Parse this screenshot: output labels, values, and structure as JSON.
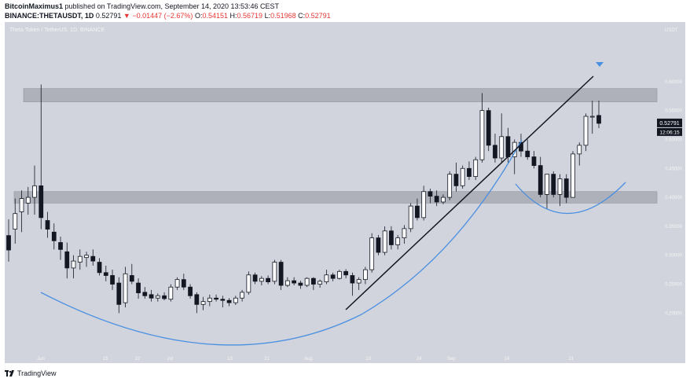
{
  "header": {
    "author": "BitcoinMaximus1",
    "published": "published on TradingView.com, September 14, 2020 13:53:46 CEST",
    "symbol": "BINANCE:THETAUSDT, 1D",
    "price": "0.52791",
    "change": "−0.01447 (−2.67%)",
    "o_label": "O:",
    "o_value": "0.54151",
    "h_label": "H:",
    "h_value": "0.56719",
    "l_label": "L:",
    "l_value": "0.51968",
    "c_label": "C:",
    "c_value": "0.52791"
  },
  "footer": {
    "brand": "TradingView"
  },
  "colors": {
    "background": "#d1d4dc",
    "zone": "#a9abb3",
    "candle_up_fill": "#ffffff",
    "candle_down_fill": "#131722",
    "candle_outline": "#131722",
    "trendline": "#131722",
    "curve": "#4a90e2",
    "price_label_bg": "#131722"
  },
  "chart_data": {
    "type": "candlestick",
    "title": "Theta Token / TetherUS, 1D, BINANCE",
    "currency": "USDT",
    "ylim": [
      0.1,
      0.65
    ],
    "y_ticks": [
      "0.60000",
      "0.55000",
      "0.50000",
      "0.45000",
      "0.40000",
      "0.35000",
      "0.30000",
      "0.25000",
      "0.20000"
    ],
    "x_ticks": [
      "Jun",
      "15",
      "22",
      "Jul",
      "13",
      "21",
      "Aug",
      "10",
      "24",
      "Sep",
      "14",
      "21"
    ],
    "last_price_label": "0.52791",
    "countdown_label": "12:06:15",
    "resistance_zone": [
      0.565,
      0.588
    ],
    "support_zone": [
      0.39,
      0.41
    ],
    "candles": [
      [
        0.334,
        0.362,
        0.289,
        0.309
      ],
      [
        0.345,
        0.398,
        0.32,
        0.372
      ],
      [
        0.375,
        0.412,
        0.34,
        0.398
      ],
      [
        0.39,
        0.418,
        0.37,
        0.4
      ],
      [
        0.4,
        0.455,
        0.37,
        0.42
      ],
      [
        0.42,
        0.595,
        0.345,
        0.365
      ],
      [
        0.36,
        0.375,
        0.33,
        0.345
      ],
      [
        0.34,
        0.355,
        0.31,
        0.325
      ],
      [
        0.322,
        0.332,
        0.292,
        0.31
      ],
      [
        0.306,
        0.322,
        0.26,
        0.278
      ],
      [
        0.278,
        0.3,
        0.26,
        0.29
      ],
      [
        0.288,
        0.31,
        0.275,
        0.298
      ],
      [
        0.296,
        0.306,
        0.28,
        0.3
      ],
      [
        0.298,
        0.31,
        0.282,
        0.29
      ],
      [
        0.288,
        0.295,
        0.265,
        0.27
      ],
      [
        0.27,
        0.282,
        0.255,
        0.265
      ],
      [
        0.265,
        0.275,
        0.24,
        0.25
      ],
      [
        0.252,
        0.262,
        0.2,
        0.215
      ],
      [
        0.218,
        0.28,
        0.21,
        0.268
      ],
      [
        0.265,
        0.285,
        0.25,
        0.255
      ],
      [
        0.252,
        0.26,
        0.225,
        0.235
      ],
      [
        0.236,
        0.245,
        0.225,
        0.23
      ],
      [
        0.232,
        0.24,
        0.22,
        0.226
      ],
      [
        0.226,
        0.234,
        0.22,
        0.23
      ],
      [
        0.23,
        0.236,
        0.222,
        0.225
      ],
      [
        0.224,
        0.25,
        0.22,
        0.245
      ],
      [
        0.245,
        0.262,
        0.24,
        0.258
      ],
      [
        0.258,
        0.268,
        0.24,
        0.245
      ],
      [
        0.245,
        0.25,
        0.225,
        0.23
      ],
      [
        0.232,
        0.236,
        0.2,
        0.215
      ],
      [
        0.215,
        0.228,
        0.205,
        0.22
      ],
      [
        0.22,
        0.232,
        0.212,
        0.226
      ],
      [
        0.226,
        0.232,
        0.22,
        0.224
      ],
      [
        0.224,
        0.23,
        0.21,
        0.222
      ],
      [
        0.222,
        0.226,
        0.212,
        0.218
      ],
      [
        0.218,
        0.23,
        0.214,
        0.226
      ],
      [
        0.226,
        0.24,
        0.22,
        0.236
      ],
      [
        0.236,
        0.272,
        0.232,
        0.266
      ],
      [
        0.266,
        0.27,
        0.25,
        0.255
      ],
      [
        0.255,
        0.264,
        0.248,
        0.26
      ],
      [
        0.26,
        0.265,
        0.25,
        0.254
      ],
      [
        0.255,
        0.292,
        0.25,
        0.288
      ],
      [
        0.288,
        0.292,
        0.24,
        0.248
      ],
      [
        0.248,
        0.262,
        0.245,
        0.256
      ],
      [
        0.256,
        0.262,
        0.248,
        0.252
      ],
      [
        0.252,
        0.256,
        0.242,
        0.248
      ],
      [
        0.248,
        0.262,
        0.245,
        0.26
      ],
      [
        0.26,
        0.262,
        0.24,
        0.25
      ],
      [
        0.25,
        0.258,
        0.244,
        0.255
      ],
      [
        0.254,
        0.275,
        0.25,
        0.266
      ],
      [
        0.266,
        0.27,
        0.255,
        0.26
      ],
      [
        0.26,
        0.275,
        0.258,
        0.272
      ],
      [
        0.272,
        0.276,
        0.26,
        0.266
      ],
      [
        0.265,
        0.27,
        0.23,
        0.252
      ],
      [
        0.252,
        0.262,
        0.24,
        0.258
      ],
      [
        0.258,
        0.28,
        0.25,
        0.275
      ],
      [
        0.275,
        0.338,
        0.27,
        0.33
      ],
      [
        0.33,
        0.335,
        0.3,
        0.305
      ],
      [
        0.305,
        0.35,
        0.3,
        0.342
      ],
      [
        0.342,
        0.35,
        0.31,
        0.318
      ],
      [
        0.318,
        0.335,
        0.31,
        0.33
      ],
      [
        0.33,
        0.352,
        0.32,
        0.346
      ],
      [
        0.346,
        0.39,
        0.34,
        0.385
      ],
      [
        0.385,
        0.398,
        0.36,
        0.365
      ],
      [
        0.365,
        0.42,
        0.36,
        0.41
      ],
      [
        0.41,
        0.415,
        0.39,
        0.402
      ],
      [
        0.402,
        0.412,
        0.385,
        0.392
      ],
      [
        0.392,
        0.405,
        0.388,
        0.4
      ],
      [
        0.4,
        0.445,
        0.395,
        0.44
      ],
      [
        0.44,
        0.46,
        0.41,
        0.42
      ],
      [
        0.42,
        0.455,
        0.415,
        0.45
      ],
      [
        0.45,
        0.462,
        0.43,
        0.436
      ],
      [
        0.436,
        0.47,
        0.43,
        0.465
      ],
      [
        0.465,
        0.58,
        0.46,
        0.55
      ],
      [
        0.55,
        0.555,
        0.48,
        0.49
      ],
      [
        0.49,
        0.51,
        0.46,
        0.468
      ],
      [
        0.468,
        0.545,
        0.46,
        0.505
      ],
      [
        0.505,
        0.52,
        0.46,
        0.47
      ],
      [
        0.47,
        0.5,
        0.44,
        0.495
      ],
      [
        0.495,
        0.51,
        0.47,
        0.48
      ],
      [
        0.48,
        0.5,
        0.465,
        0.47
      ],
      [
        0.47,
        0.48,
        0.45,
        0.455
      ],
      [
        0.455,
        0.47,
        0.4,
        0.405
      ],
      [
        0.405,
        0.44,
        0.38,
        0.44
      ],
      [
        0.44,
        0.445,
        0.4,
        0.405
      ],
      [
        0.405,
        0.44,
        0.385,
        0.432
      ],
      [
        0.432,
        0.44,
        0.39,
        0.4
      ],
      [
        0.4,
        0.48,
        0.4,
        0.475
      ],
      [
        0.475,
        0.495,
        0.455,
        0.49
      ],
      [
        0.49,
        0.545,
        0.48,
        0.54
      ],
      [
        0.54,
        0.567,
        0.51,
        0.54
      ],
      [
        0.5415,
        0.5672,
        0.5197,
        0.5279
      ]
    ]
  }
}
